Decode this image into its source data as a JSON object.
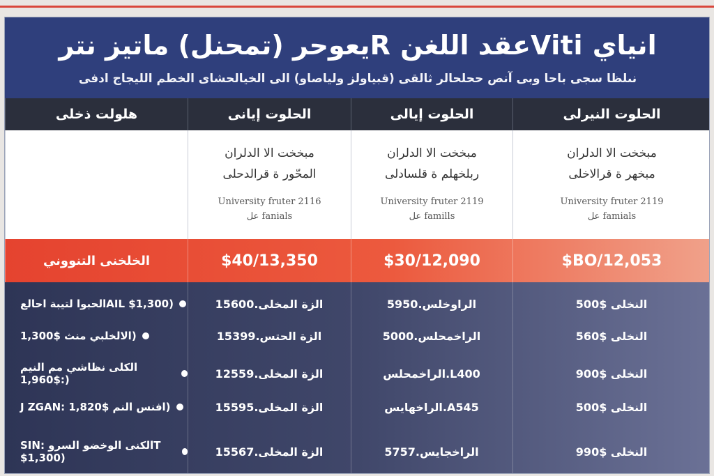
{
  "header": {
    "title": "يعوحر (تمحنل) ماتيز نترR عقد اللغنViti انياي",
    "subtitle": "نىلظا سجى باحا وبى آنص ححلحالر ثالقى (قبياولز ولياصاو) الى الخيالحشاى الخطم الليجاج ادفى"
  },
  "columns": [
    {
      "heading": "الحلوت النيرلى",
      "desc_ar_1": "مبخخت الا الدلران",
      "desc_ar_2": "مبخهر ة قرالاخلى",
      "desc_en_1": "University fruter 2119",
      "desc_en_2": "عل famials",
      "price": "$BO/12,053"
    },
    {
      "heading": "الحلوت إيالى",
      "desc_ar_1": "مبخخت الا الدلران",
      "desc_ar_2": "ربلخهلم ة قلسادلى",
      "desc_en_1": "University fruter 2119",
      "desc_en_2": "عل famills",
      "price": "$30/12,090"
    },
    {
      "heading": "الحلوت إيانى",
      "desc_ar_1": "مبخخت الا الدلران",
      "desc_ar_2": "المحّور ة قرالدحلى",
      "desc_en_1": "University fruter 2116",
      "desc_en_2": "عل fanials",
      "price": "$40/13,350"
    },
    {
      "heading": "هلولت ذخلى",
      "price_label": "الخلخنى التنووني"
    }
  ],
  "rows": [
    {
      "c1": "500$ النخلى",
      "c2": "الراوخلس.5950",
      "c3": "الزة المخلى.15600",
      "feature": "الحبوا لتيبة احالعAIL $1,300)"
    },
    {
      "c1": "560$ النخلى",
      "c2": "الراخمحلس.5000",
      "c3": "الزة الحتس.15399",
      "feature": "الالخلبي منث $1,300)"
    },
    {
      "c1": "900$ النخلى",
      "c2": "الراخمحلس.L400",
      "c3": "الزة المخلى.12559",
      "feature": "الكلى نظاشي مم النيم :$1,960)"
    },
    {
      "c1": "500$ النخلى",
      "c2": "الراخهايس.A545",
      "c3": "الزة المخلى.15595",
      "feature": "J ZGAN: افنس النم $1,820)"
    },
    {
      "c1": "990$ النخلى",
      "c2": "الراخجايس.5757",
      "c3": "الزة المخلى.15567",
      "feature": "SIN: الكنى الوخضو السروT $1,300)"
    }
  ],
  "colors": {
    "header": "#2f3f7c",
    "accent": "#e5432f",
    "rows": "#3a4163"
  }
}
